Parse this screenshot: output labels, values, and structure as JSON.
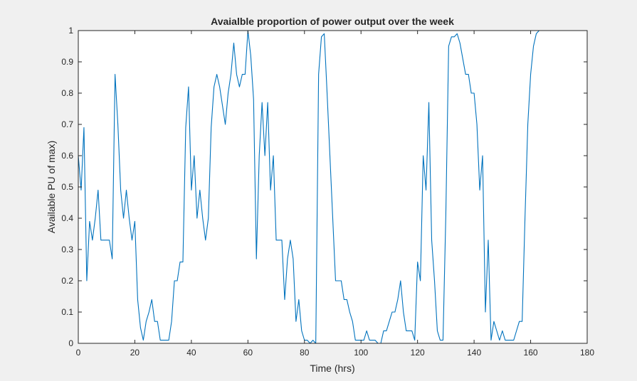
{
  "chart_data": {
    "type": "line",
    "title": "Avaialble proportion of power output over the week",
    "xlabel": "Time (hrs)",
    "ylabel": "Available PU of max)",
    "xlim": [
      0,
      180
    ],
    "ylim": [
      0,
      1
    ],
    "xticks": [
      0,
      20,
      40,
      60,
      80,
      100,
      120,
      140,
      160,
      180
    ],
    "yticks": [
      0,
      0.1,
      0.2,
      0.3,
      0.4,
      0.5,
      0.6,
      0.7,
      0.8,
      0.9,
      1
    ],
    "grid": false,
    "line_color": "#0072bd",
    "series": [
      {
        "x": [
          0,
          1,
          2,
          3,
          4,
          5,
          6,
          7,
          8,
          9,
          10,
          11,
          12,
          13,
          14,
          15,
          16,
          17,
          18,
          19,
          20,
          21,
          22,
          23,
          24,
          25,
          26,
          27,
          28,
          29,
          30,
          31,
          32,
          33,
          34,
          35,
          36,
          37,
          38,
          39,
          40,
          41,
          42,
          43,
          44,
          45,
          46,
          47,
          48,
          49,
          50,
          51,
          52,
          53,
          54,
          55,
          56,
          57,
          58,
          59,
          60,
          61,
          62,
          63,
          64,
          65,
          66,
          67,
          68,
          69,
          70,
          71,
          72,
          73,
          74,
          75,
          76,
          77,
          78,
          79,
          80,
          81,
          82,
          83,
          84,
          85,
          86,
          87,
          88,
          89,
          90,
          91,
          92,
          93,
          94,
          95,
          96,
          97,
          98,
          99,
          100,
          101,
          102,
          103,
          104,
          105,
          106,
          107,
          108,
          109,
          110,
          111,
          112,
          113,
          114,
          115,
          116,
          117,
          118,
          119,
          120,
          121,
          122,
          123,
          124,
          125,
          126,
          127,
          128,
          129,
          130,
          131,
          132,
          133,
          134,
          135,
          136,
          137,
          138,
          139,
          140,
          141,
          142,
          143,
          144,
          145,
          146,
          147,
          148,
          149,
          150,
          151,
          152,
          153,
          154,
          155,
          156,
          157,
          158,
          159,
          160,
          161,
          162,
          163,
          164,
          165,
          166,
          167,
          168
        ],
        "values": [
          0.6,
          0.49,
          0.69,
          0.2,
          0.39,
          0.33,
          0.4,
          0.49,
          0.33,
          0.33,
          0.33,
          0.33,
          0.27,
          0.86,
          0.7,
          0.49,
          0.4,
          0.49,
          0.4,
          0.33,
          0.39,
          0.14,
          0.05,
          0.01,
          0.07,
          0.1,
          0.14,
          0.07,
          0.07,
          0.01,
          0.01,
          0.01,
          0.01,
          0.07,
          0.2,
          0.2,
          0.26,
          0.26,
          0.69,
          0.82,
          0.49,
          0.6,
          0.4,
          0.49,
          0.4,
          0.33,
          0.4,
          0.69,
          0.82,
          0.86,
          0.82,
          0.76,
          0.7,
          0.8,
          0.86,
          0.96,
          0.86,
          0.82,
          0.86,
          0.86,
          1.0,
          0.92,
          0.78,
          0.27,
          0.6,
          0.77,
          0.6,
          0.77,
          0.49,
          0.6,
          0.33,
          0.33,
          0.33,
          0.14,
          0.27,
          0.33,
          0.27,
          0.07,
          0.14,
          0.04,
          0.01,
          0.01,
          0.0,
          0.01,
          0.0,
          0.86,
          0.98,
          0.99,
          0.8,
          0.6,
          0.4,
          0.2,
          0.2,
          0.2,
          0.14,
          0.14,
          0.1,
          0.07,
          0.01,
          0.01,
          0.01,
          0.01,
          0.04,
          0.01,
          0.01,
          0.01,
          0.0,
          0.0,
          0.04,
          0.04,
          0.07,
          0.1,
          0.1,
          0.14,
          0.2,
          0.1,
          0.04,
          0.04,
          0.04,
          0.01,
          0.26,
          0.2,
          0.6,
          0.49,
          0.77,
          0.33,
          0.2,
          0.04,
          0.01,
          0.01,
          0.41,
          0.95,
          0.98,
          0.98,
          0.99,
          0.96,
          0.91,
          0.86,
          0.86,
          0.8,
          0.8,
          0.7,
          0.49,
          0.6,
          0.1,
          0.33,
          0.01,
          0.07,
          0.04,
          0.01,
          0.04,
          0.01,
          0.01,
          0.01,
          0.01,
          0.04,
          0.07,
          0.07,
          0.4,
          0.7,
          0.86,
          0.95,
          0.99,
          1.0,
          1.0,
          1.0,
          1.0,
          1.0,
          1.0
        ]
      }
    ]
  }
}
